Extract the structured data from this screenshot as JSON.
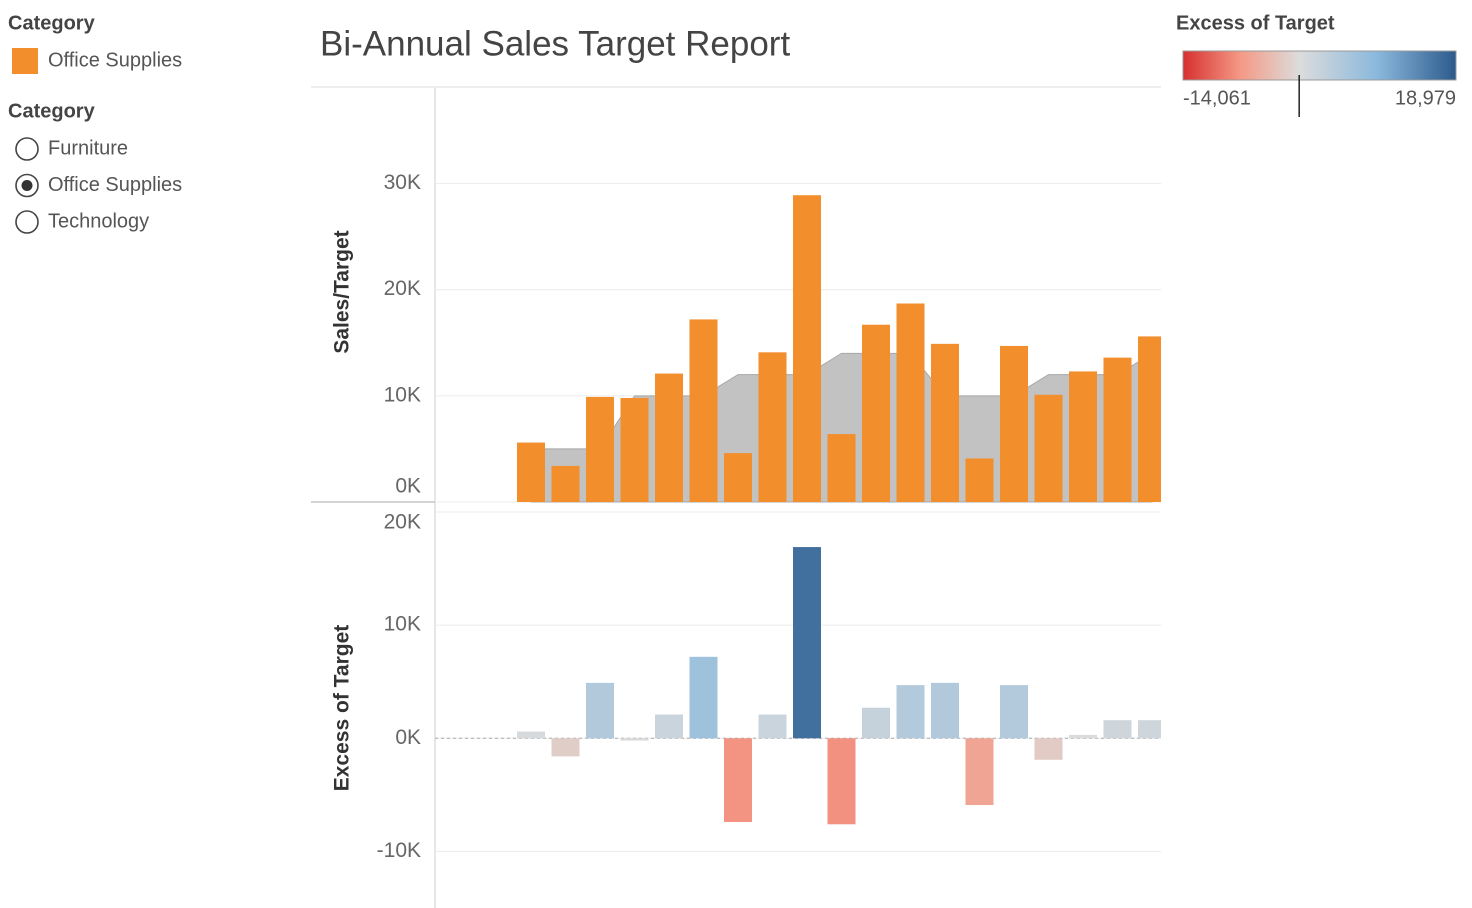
{
  "legend": {
    "title": "Category"
  },
  "filter": {
    "title": "Category",
    "options": [
      "Furniture",
      "Office Supplies",
      "Technology"
    ],
    "selected": 1
  },
  "color_legend": {
    "title": "Excess of Target",
    "min": {
      "value": -14061,
      "label": "-14,061"
    },
    "max": {
      "value": 18979,
      "label": "18,979"
    },
    "colors": [
      "#d7302f",
      "#f49a86",
      "#dcdcdc",
      "#8ab8dc",
      "#2c5a8c"
    ]
  },
  "chart_data": [
    {
      "type": "bar",
      "title": "Bi-Annual Sales Target Report",
      "ylabel": "Sales/Target",
      "categories": [
        null,
        null,
        null,
        null,
        null,
        null,
        null,
        null,
        null,
        null,
        null,
        null,
        null,
        null,
        null,
        null,
        null,
        null,
        null,
        null,
        null
      ],
      "series": [
        {
          "type": "area",
          "color": "#c2c2c2",
          "values": [
            null,
            null,
            5000,
            5000,
            5000,
            10000,
            10000,
            10000,
            12000,
            12000,
            12000,
            14000,
            14000,
            14000,
            10000,
            10000,
            10000,
            12000,
            12000,
            12000,
            14000
          ]
        },
        {
          "name": "Office Supplies",
          "color": "#f28e2b",
          "values": [
            null,
            null,
            5600,
            3400,
            9900,
            9800,
            12100,
            17200,
            4600,
            14100,
            28900,
            6400,
            16700,
            18700,
            14900,
            4100,
            14700,
            10100,
            12300,
            13600,
            15600
          ]
        }
      ],
      "ylim": [
        0,
        39000
      ],
      "yticks": [
        {
          "value": 0,
          "label": "0K"
        },
        {
          "value": 10000,
          "label": "10K"
        },
        {
          "value": 20000,
          "label": "20K"
        },
        {
          "value": 30000,
          "label": "30K"
        }
      ],
      "grid": true
    },
    {
      "type": "bar",
      "ylabel": "Excess of Target",
      "categories": [
        null,
        null,
        null,
        null,
        null,
        null,
        null,
        null,
        null,
        null,
        null,
        null,
        null,
        null,
        null,
        null,
        null,
        null,
        null,
        null,
        null
      ],
      "values": [
        null,
        null,
        600,
        -1600,
        4900,
        -200,
        2100,
        7200,
        -7400,
        2100,
        16900,
        -7600,
        2700,
        4700,
        4900,
        -5900,
        4700,
        -1900,
        300,
        1600,
        1600
      ],
      "ylim": [
        -15000,
        20000
      ],
      "yticks": [
        {
          "value": -10000,
          "label": "-10K"
        },
        {
          "value": 0,
          "label": "0K"
        },
        {
          "value": 10000,
          "label": "10K"
        },
        {
          "value": 20000,
          "label": "20K"
        }
      ],
      "grid": true
    }
  ]
}
